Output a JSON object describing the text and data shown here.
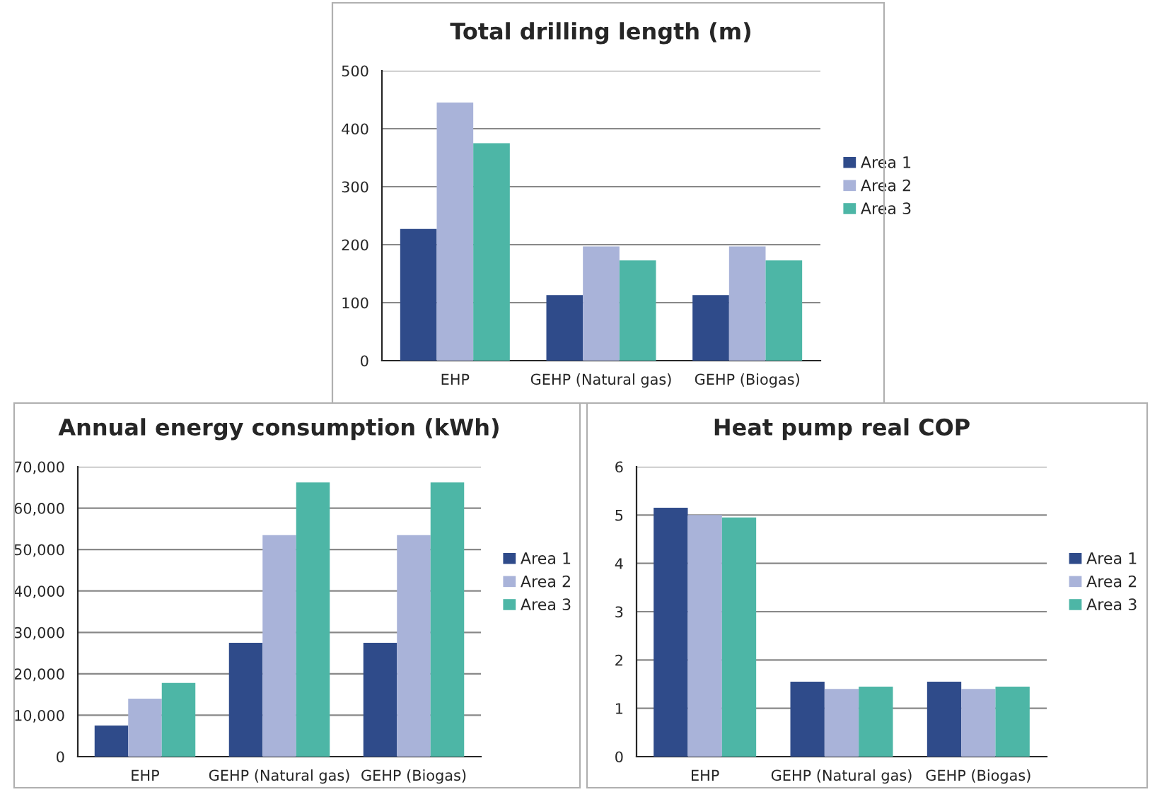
{
  "chart_data": [
    {
      "type": "bar",
      "title": "Total drilling length (m)",
      "categories": [
        "EHP",
        "GEHP (Natural gas)",
        "GEHP (Biogas)"
      ],
      "series": [
        {
          "name": "Area 1",
          "color": "#2f4b8a",
          "values": [
            227,
            113,
            113
          ]
        },
        {
          "name": "Area 2",
          "color": "#a9b3d9",
          "values": [
            445,
            197,
            197
          ]
        },
        {
          "name": "Area 3",
          "color": "#4db6a6",
          "values": [
            375,
            173,
            173
          ]
        }
      ],
      "ylim": [
        0,
        500
      ],
      "yticks": [
        0,
        100,
        200,
        300,
        400,
        500
      ],
      "grid": "y",
      "legend": "right"
    },
    {
      "type": "bar",
      "title": "Annual energy consumption (kWh)",
      "categories": [
        "EHP",
        "GEHP (Natural gas)",
        "GEHP (Biogas)"
      ],
      "series": [
        {
          "name": "Area 1",
          "color": "#2f4b8a",
          "values": [
            7500,
            27500,
            27500
          ]
        },
        {
          "name": "Area 2",
          "color": "#a9b3d9",
          "values": [
            14000,
            53500,
            53500
          ]
        },
        {
          "name": "Area 3",
          "color": "#4db6a6",
          "values": [
            17800,
            66200,
            66200
          ]
        }
      ],
      "ylim": [
        0,
        70000
      ],
      "yticks": [
        0,
        {
          "value": 10000,
          "label": "10,000"
        },
        {
          "value": 20000,
          "label": "20,000"
        },
        {
          "value": 30000,
          "label": "30,000"
        },
        {
          "value": 40000,
          "label": "40,000"
        },
        {
          "value": 50000,
          "label": "50,000"
        },
        {
          "value": 60000,
          "label": "60,000"
        },
        {
          "value": 70000,
          "label": "70,000"
        }
      ],
      "grid": "y",
      "legend": "right"
    },
    {
      "type": "bar",
      "title": "Heat pump real COP",
      "categories": [
        "EHP",
        "GEHP (Natural gas)",
        "GEHP (Biogas)"
      ],
      "series": [
        {
          "name": "Area 1",
          "color": "#2f4b8a",
          "values": [
            5.15,
            1.55,
            1.55
          ]
        },
        {
          "name": "Area 2",
          "color": "#a9b3d9",
          "values": [
            5.0,
            1.4,
            1.4
          ]
        },
        {
          "name": "Area 3",
          "color": "#4db6a6",
          "values": [
            4.95,
            1.45,
            1.45
          ]
        }
      ],
      "ylim": [
        0,
        6
      ],
      "yticks": [
        0,
        1,
        2,
        3,
        4,
        5,
        6
      ],
      "grid": "y",
      "legend": "right"
    }
  ]
}
